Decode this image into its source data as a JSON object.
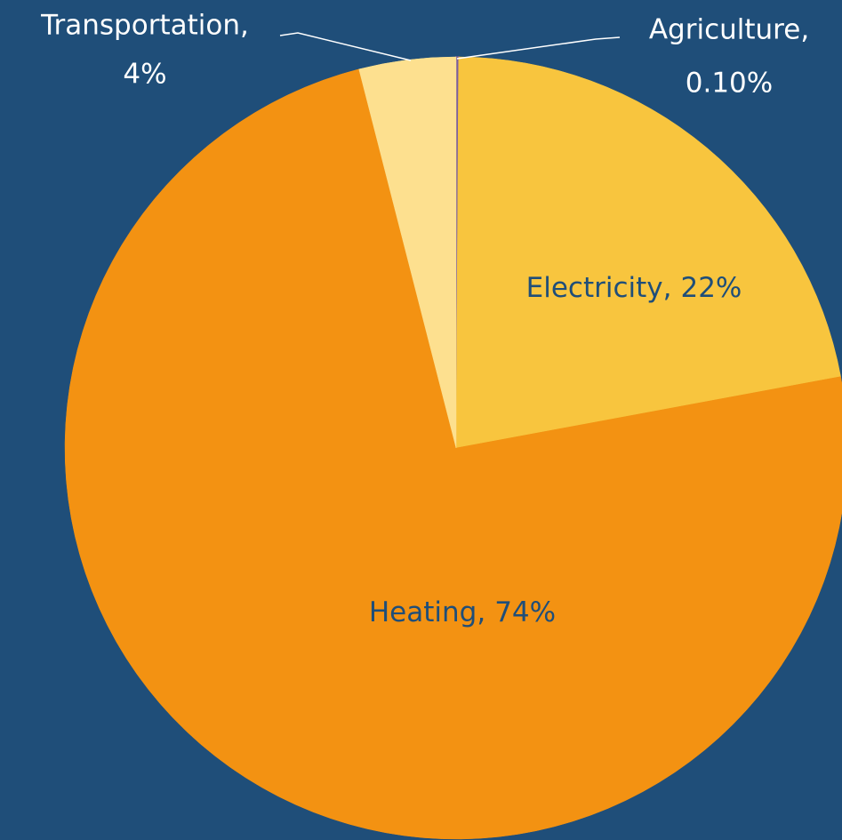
{
  "chart_data": {
    "type": "pie",
    "categories": [
      "Agriculture,",
      "Electricity,",
      "Heating,",
      "Transportation,"
    ],
    "values": [
      0.1,
      22,
      74,
      4
    ],
    "value_labels": [
      "0.10%",
      "22%",
      "74%",
      "4%"
    ],
    "colors": [
      "#7b5f9e",
      "#f8c53e",
      "#f39212",
      "#fde08f"
    ],
    "start_angle": 90,
    "direction": "clockwise"
  }
}
